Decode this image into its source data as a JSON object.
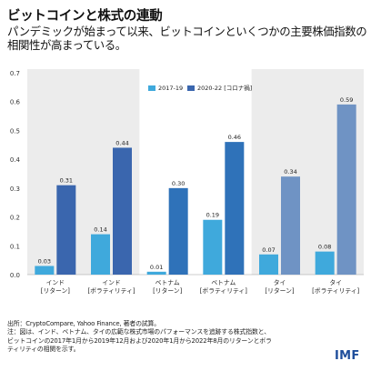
{
  "title": "ビットコインと株式の連動",
  "subtitle_line1": "パンデミックが始まって以来、ビットコインといくつかの主要株価指数の",
  "subtitle_line2": "相関性が高まっている。",
  "notes": {
    "source": "出所：CryptoCompare, Yahoo Finance, 著者の試算。",
    "note1": "注：図は、インド、ベトナム、タイの広範な株式市場のパフォーマンスを追跡する株式指数と、",
    "note2": "ビットコインの2017年1月から2019年12月および2020年1月から2022年8月のリターンとボラ",
    "note3": "ティリティの相関を示す。"
  },
  "logo": "IMF",
  "colors": {
    "series_2017": "#3fa9dc",
    "series_2020_varied_by_group": [
      "#3a66ae",
      "#2f72b9",
      "#6f93c4"
    ],
    "shade": "#ececec",
    "axis_text": "#333333"
  },
  "chart_data": {
    "type": "bar",
    "categories": [
      [
        "インド",
        "[リターン]"
      ],
      [
        "インド",
        "[ボラティリティ]"
      ],
      [
        "ベトナム",
        "[リターン]"
      ],
      [
        "ベトナム",
        "[ボラティリティ]"
      ],
      [
        "タイ",
        "[リターン]"
      ],
      [
        "タイ",
        "[ボラティリティ]"
      ]
    ],
    "series": [
      {
        "name": "2017-19",
        "values": [
          0.03,
          0.14,
          0.01,
          0.19,
          0.07,
          0.08
        ],
        "labels": [
          "0.03",
          "0.14",
          "0.01",
          "0.19",
          "0.07",
          "0.08"
        ]
      },
      {
        "name": "2020-22 [コロナ禍]",
        "values": [
          0.31,
          0.44,
          0.3,
          0.46,
          0.34,
          0.59
        ],
        "labels": [
          "0.31",
          "0.44",
          "0.30",
          "0.46",
          "0.34",
          "0.59"
        ]
      }
    ],
    "ylim": [
      0,
      0.7
    ],
    "yticks": [
      "0.0",
      "0.1",
      "0.2",
      "0.3",
      "0.4",
      "0.5",
      "0.6",
      "0.7"
    ],
    "shaded_groups": [
      "インド",
      "タイ"
    ],
    "legend_position": "top-center",
    "grid": false
  }
}
